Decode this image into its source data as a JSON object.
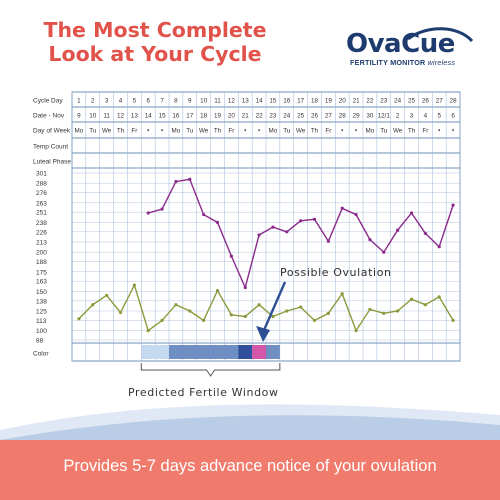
{
  "headline": {
    "line1": "The Most Complete",
    "line2": "Look at Your Cycle"
  },
  "logo": {
    "brand_part1": "Ova",
    "brand_part2": "Cue",
    "subtitle": "FERTILITY MONITOR",
    "subtitle_suffix": "wireless"
  },
  "tagline": "Provides 5-7 days advance notice of your ovulation",
  "colors": {
    "headline": "#e0524a",
    "brand": "#1d3b6e",
    "purple": "#8b2a8b",
    "green": "#8a9a3c",
    "grid": "#9fb6d6",
    "border": "#6f8fb8",
    "label": "#333333",
    "banner": "#f07a6c",
    "light_blue": "#c5daf0",
    "mid_blue": "#6f8fc3",
    "dark_blue": "#2f4f9a",
    "pink": "#d257a8",
    "arrow": "#2d4f93"
  },
  "chart_data": {
    "type": "line",
    "row_labels": [
      "Cycle Day",
      "Date - Nov",
      "Day of Week",
      "Temp Count",
      "Luteal Phase",
      "Color"
    ],
    "cycle_days": [
      "1",
      "2",
      "3",
      "4",
      "5",
      "6",
      "7",
      "8",
      "9",
      "10",
      "11",
      "12",
      "13",
      "14",
      "15",
      "16",
      "17",
      "18",
      "19",
      "20",
      "21",
      "22",
      "23",
      "24",
      "25",
      "26",
      "27",
      "28"
    ],
    "dates": [
      "9",
      "10",
      "11",
      "12",
      "13",
      "14",
      "15",
      "16",
      "17",
      "18",
      "19",
      "20",
      "21",
      "22",
      "23",
      "24",
      "25",
      "26",
      "27",
      "28",
      "29",
      "30",
      "12/1",
      "2",
      "3",
      "4",
      "5",
      "6"
    ],
    "weekdays": [
      "Mo",
      "Tu",
      "We",
      "Th",
      "Fr",
      "•",
      "•",
      "Mo",
      "Tu",
      "We",
      "Th",
      "Fr",
      "•",
      "•",
      "Mo",
      "Tu",
      "We",
      "Th",
      "Fr",
      "•",
      "•",
      "Mo",
      "Tu",
      "We",
      "Th",
      "Fr",
      "•",
      "•"
    ],
    "y_ticks": [
      301,
      288,
      276,
      263,
      251,
      238,
      226,
      213,
      200,
      188,
      175,
      163,
      150,
      138,
      125,
      113,
      100,
      88
    ],
    "ylim": [
      88,
      301
    ],
    "series": [
      {
        "values": [
          null,
          null,
          null,
          null,
          null,
          250,
          255,
          290,
          293,
          248,
          238,
          195,
          155,
          222,
          232,
          226,
          240,
          242,
          214,
          256,
          248,
          216,
          200,
          228,
          250,
          224,
          207,
          260
        ]
      },
      {
        "values": [
          115,
          133,
          145,
          123,
          158,
          100,
          113,
          133,
          125,
          113,
          151,
          120,
          118,
          133,
          118,
          125,
          130,
          113,
          122,
          147,
          100,
          127,
          122,
          125,
          140,
          133,
          143,
          113
        ]
      }
    ],
    "color_bar": [
      {
        "from_day": 6,
        "to_day": 7,
        "level": "low"
      },
      {
        "from_day": 8,
        "to_day": 12,
        "level": "high"
      },
      {
        "from_day": 13,
        "to_day": 13,
        "level": "peak"
      },
      {
        "from_day": 14,
        "to_day": 14,
        "level": "ovulation"
      },
      {
        "from_day": 15,
        "to_day": 15,
        "level": "high"
      }
    ],
    "annotations": {
      "ovulation": "Possible Ovulation",
      "window": "Predicted Fertile Window"
    }
  }
}
